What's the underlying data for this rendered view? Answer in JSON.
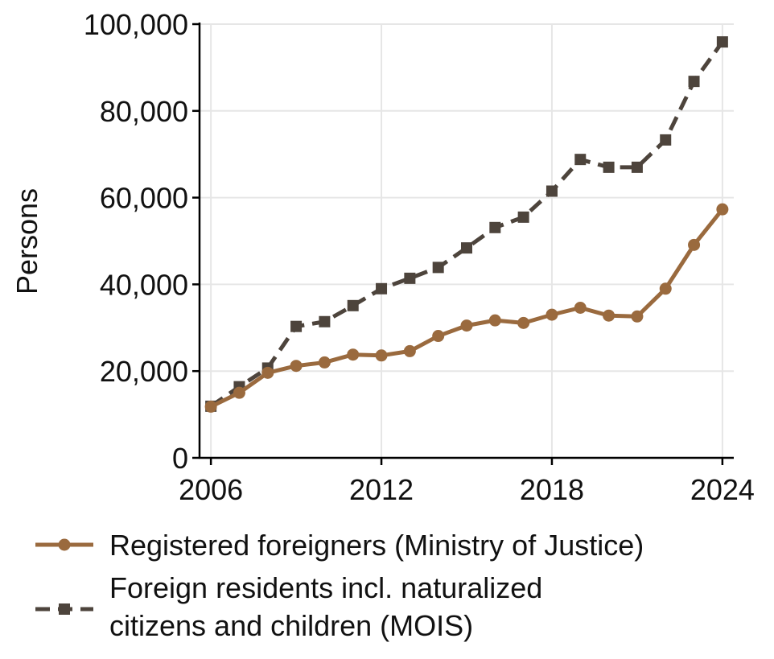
{
  "chart_data": {
    "type": "line",
    "title": "",
    "xlabel": "",
    "ylabel": "Persons",
    "x": [
      2006,
      2007,
      2008,
      2009,
      2010,
      2011,
      2012,
      2013,
      2014,
      2015,
      2016,
      2017,
      2018,
      2019,
      2020,
      2021,
      2022,
      2023,
      2024
    ],
    "xlim": [
      2005.6,
      2024.4
    ],
    "ylim": [
      0,
      100000
    ],
    "x_ticks": [
      2006,
      2012,
      2018,
      2024
    ],
    "x_tick_labels": [
      "2006",
      "2012",
      "2018",
      "2024"
    ],
    "y_ticks": [
      0,
      20000,
      40000,
      60000,
      80000,
      100000
    ],
    "y_tick_labels": [
      "0",
      "20,000",
      "40,000",
      "60,000",
      "80,000",
      "100,000"
    ],
    "grid": true,
    "legend_position": "bottom",
    "series": [
      {
        "name": "Registered foreigners (Ministry of Justice)",
        "color": "#9a6a3e",
        "line_style": "solid",
        "marker": "circle",
        "values": [
          11800,
          15000,
          19600,
          21200,
          22000,
          23800,
          23600,
          24600,
          28100,
          30500,
          31700,
          31100,
          33000,
          34600,
          32800,
          32600,
          39000,
          49100,
          57300
        ]
      },
      {
        "name": "Foreign residents incl. naturalized citizens and children (MOIS)",
        "legend_lines": [
          "Foreign residents incl. naturalized",
          "citizens and children (MOIS)"
        ],
        "color": "#4d443c",
        "line_style": "dashed",
        "marker": "square",
        "values": [
          11900,
          16400,
          20700,
          30300,
          31400,
          35100,
          39000,
          41400,
          43900,
          48400,
          53100,
          55500,
          61500,
          68800,
          67000,
          67000,
          73300,
          86800,
          95900
        ]
      }
    ]
  }
}
